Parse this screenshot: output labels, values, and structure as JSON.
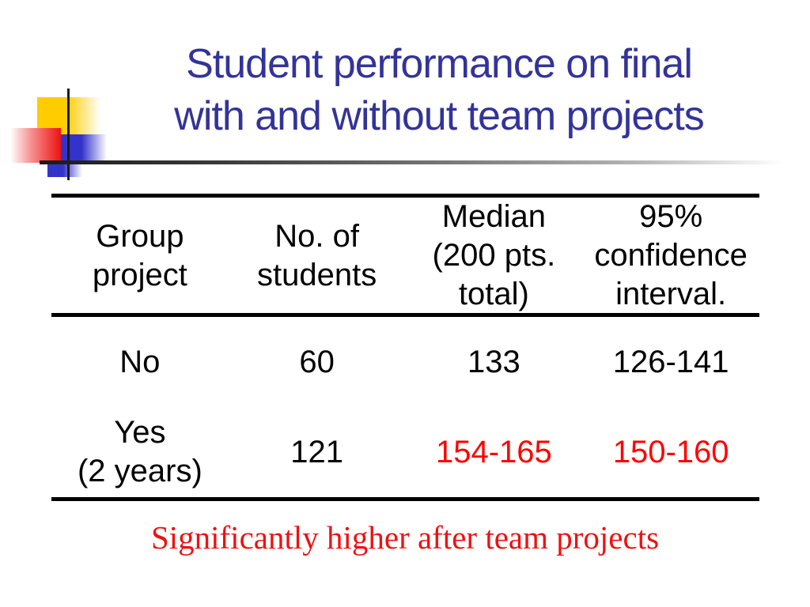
{
  "title": {
    "lines": [
      "Student performance on final",
      "with and without team projects"
    ]
  },
  "table": {
    "headers": [
      {
        "text": "Group\nproject"
      },
      {
        "text": "No. of\nstudents"
      },
      {
        "text": "Median\n(200 pts.\ntotal)"
      },
      {
        "text": "95%\nconfidence\ninterval."
      }
    ],
    "rows": [
      {
        "cells": [
          {
            "text": "No",
            "color": "#000000"
          },
          {
            "text": "60",
            "color": "#000000"
          },
          {
            "text": "133",
            "color": "#000000"
          },
          {
            "text": "126-141",
            "color": "#000000"
          }
        ]
      },
      {
        "cells": [
          {
            "text": "Yes\n(2 years)",
            "color": "#000000"
          },
          {
            "text": "121",
            "color": "#000000"
          },
          {
            "text": "154-165",
            "color": "#ff0000"
          },
          {
            "text": "150-160",
            "color": "#ff0000"
          }
        ]
      }
    ]
  },
  "caption": {
    "text": "Significantly higher after team projects"
  },
  "colors": {
    "title": "#333399",
    "table_text": "#000000",
    "highlight": "#ff0000",
    "caption": "#ee1111",
    "rule": "#000000"
  },
  "decoration": {
    "yellow_square": "#ffcc00",
    "red_square": "#ee1111",
    "blue_square": "#3333cc",
    "line_color": "#1a1a1a"
  }
}
